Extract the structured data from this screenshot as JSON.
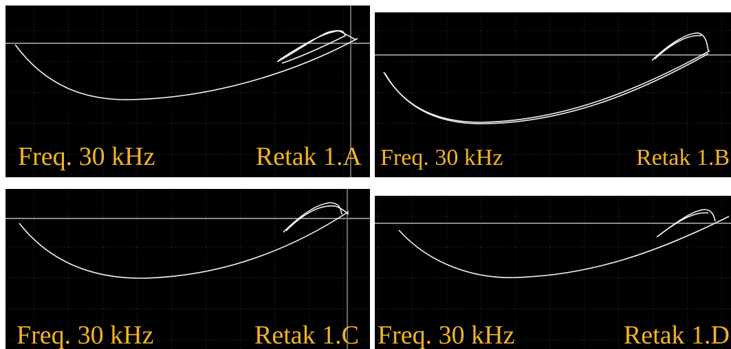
{
  "panels": [
    {
      "frequency": "Freq. 30 kHz",
      "label": "Retak 1.A"
    },
    {
      "frequency": "Freq. 30 kHz",
      "label": "Retak 1.B"
    },
    {
      "frequency": "Freq. 30 kHz",
      "label": "Retak 1.C"
    },
    {
      "frequency": "Freq. 30 kHz",
      "label": "Retak 1.D"
    }
  ]
}
